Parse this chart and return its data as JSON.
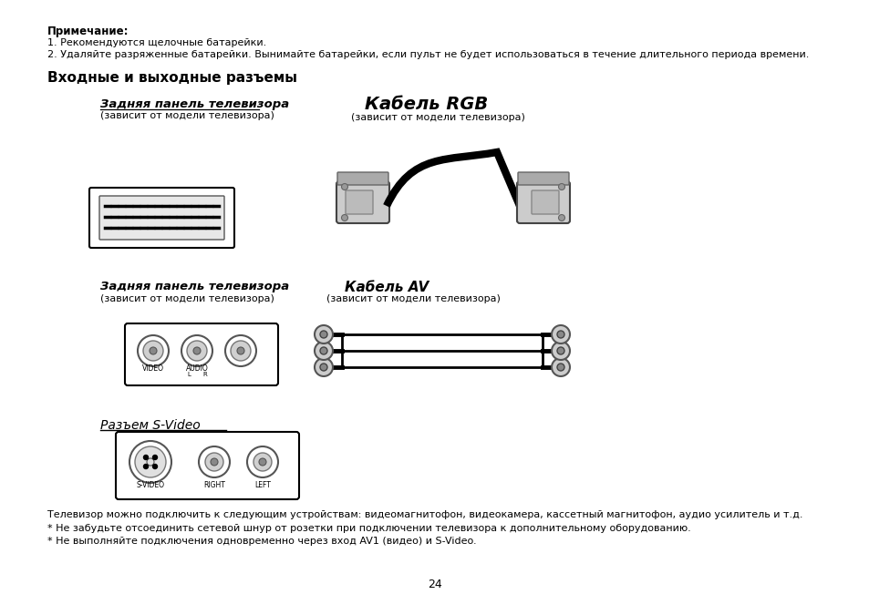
{
  "background_color": "#ffffff",
  "page_number": "24",
  "note_bold": "Примечание:",
  "note_line1": "1. Рекомендуются щелочные батарейки.",
  "note_line2": "2. Удаляйте разряженные батарейки. Вынимайте батарейки, если пульт не будет использоваться в течение длительного периода времени.",
  "section_title": "Входные и выходные разъемы",
  "label1_bold": "Задняя панель телевизора",
  "label1_sub": "(зависит от модели телевизора)",
  "label2_bold": "Кабель RGB",
  "label2_sub": "(зависит от модели телевизора)",
  "label3_bold": "Задняя панель телевизора",
  "label3_sub": "(зависит от модели телевизора)",
  "label4_bold": "Кабель AV",
  "label4_sub": "(зависит от модели телевизора)",
  "label5_italic_underline": "Разъем S-Video",
  "svideo_labels": [
    "S-VIDEO",
    "RIGHT",
    "LEFT"
  ],
  "footer1": "Телевизор можно подключить к следующим устройствам: видеомагнитофон, видеокамера, кассетный магнитофон, аудио усилитель и т.д.",
  "footer2": "* Не забудьте отсоединить сетевой шнур от розетки при подключении телевизора к дополнительному оборудованию.",
  "footer3": "* Не выполняйте подключения одновременно через вход AV1 (видео) и S-Video."
}
